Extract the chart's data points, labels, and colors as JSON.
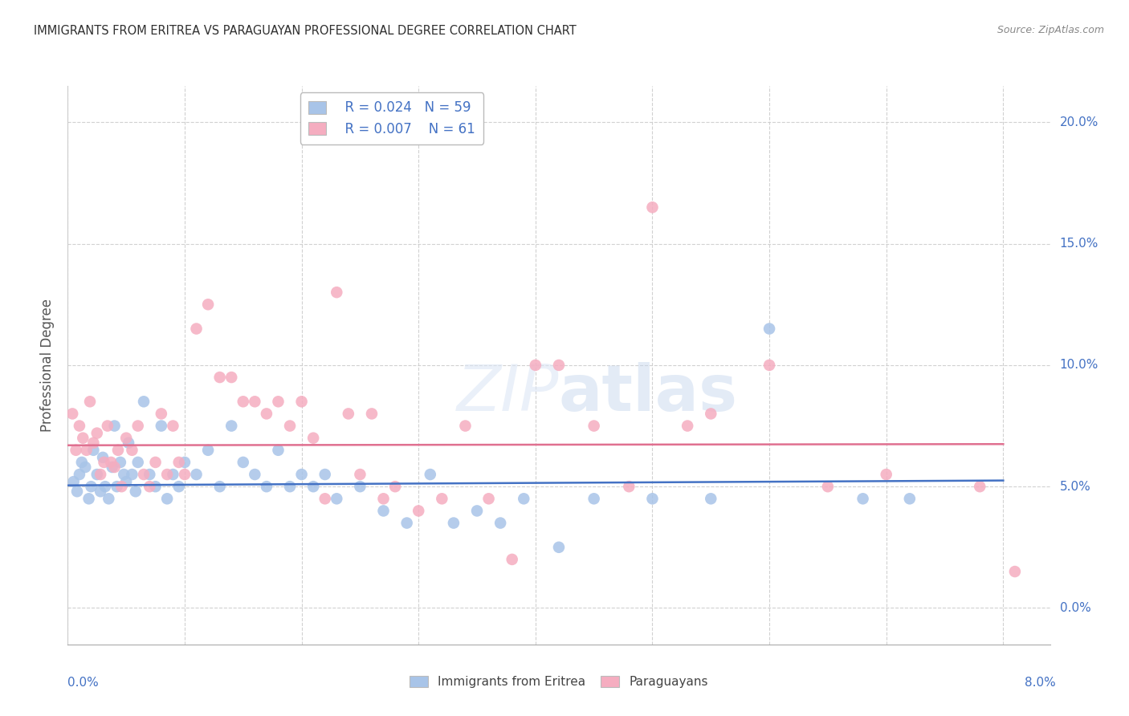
{
  "title": "IMMIGRANTS FROM ERITREA VS PARAGUAYAN PROFESSIONAL DEGREE CORRELATION CHART",
  "source": "Source: ZipAtlas.com",
  "ylabel": "Professional Degree",
  "legend_blue_r": "R = 0.024",
  "legend_blue_n": "N = 59",
  "legend_pink_r": "R = 0.007",
  "legend_pink_n": "N = 61",
  "legend_label_blue": "Immigrants from Eritrea",
  "legend_label_pink": "Paraguayans",
  "xlim": [
    0.0,
    8.4
  ],
  "ylim": [
    -1.5,
    21.5
  ],
  "yticks": [
    0.0,
    5.0,
    10.0,
    15.0,
    20.0
  ],
  "ytick_labels": [
    "0.0%",
    "5.0%",
    "10.0%",
    "15.0%",
    "20.0%"
  ],
  "blue_color": "#a8c4e8",
  "pink_color": "#f5adc0",
  "blue_line_color": "#4472c4",
  "pink_line_color": "#e07090",
  "title_color": "#404040",
  "axis_label_color": "#4472c4",
  "watermark": "ZIPatlas",
  "blue_trend_x": [
    0.0,
    8.0
  ],
  "blue_trend_y": [
    5.05,
    5.25
  ],
  "pink_trend_x": [
    0.0,
    8.0
  ],
  "pink_trend_y": [
    6.7,
    6.75
  ],
  "blue_x": [
    0.05,
    0.08,
    0.1,
    0.12,
    0.15,
    0.18,
    0.2,
    0.22,
    0.25,
    0.28,
    0.3,
    0.32,
    0.35,
    0.38,
    0.4,
    0.42,
    0.45,
    0.48,
    0.5,
    0.52,
    0.55,
    0.58,
    0.6,
    0.65,
    0.7,
    0.75,
    0.8,
    0.85,
    0.9,
    0.95,
    1.0,
    1.1,
    1.2,
    1.3,
    1.4,
    1.5,
    1.6,
    1.7,
    1.8,
    1.9,
    2.0,
    2.1,
    2.2,
    2.3,
    2.5,
    2.7,
    2.9,
    3.1,
    3.3,
    3.5,
    3.7,
    3.9,
    4.2,
    4.5,
    5.0,
    5.5,
    6.0,
    6.8,
    7.2
  ],
  "blue_y": [
    5.2,
    4.8,
    5.5,
    6.0,
    5.8,
    4.5,
    5.0,
    6.5,
    5.5,
    4.8,
    6.2,
    5.0,
    4.5,
    5.8,
    7.5,
    5.0,
    6.0,
    5.5,
    5.2,
    6.8,
    5.5,
    4.8,
    6.0,
    8.5,
    5.5,
    5.0,
    7.5,
    4.5,
    5.5,
    5.0,
    6.0,
    5.5,
    6.5,
    5.0,
    7.5,
    6.0,
    5.5,
    5.0,
    6.5,
    5.0,
    5.5,
    5.0,
    5.5,
    4.5,
    5.0,
    4.0,
    3.5,
    5.5,
    3.5,
    4.0,
    3.5,
    4.5,
    2.5,
    4.5,
    4.5,
    4.5,
    11.5,
    4.5,
    4.5
  ],
  "pink_x": [
    0.04,
    0.07,
    0.1,
    0.13,
    0.16,
    0.19,
    0.22,
    0.25,
    0.28,
    0.31,
    0.34,
    0.37,
    0.4,
    0.43,
    0.46,
    0.5,
    0.55,
    0.6,
    0.65,
    0.7,
    0.75,
    0.8,
    0.85,
    0.9,
    0.95,
    1.0,
    1.1,
    1.2,
    1.3,
    1.4,
    1.5,
    1.6,
    1.7,
    1.8,
    1.9,
    2.0,
    2.1,
    2.2,
    2.3,
    2.4,
    2.5,
    2.6,
    2.7,
    2.8,
    3.0,
    3.2,
    3.4,
    3.6,
    3.8,
    4.0,
    4.2,
    4.5,
    4.8,
    5.0,
    5.3,
    5.5,
    6.0,
    6.5,
    7.0,
    7.8,
    8.1
  ],
  "pink_y": [
    8.0,
    6.5,
    7.5,
    7.0,
    6.5,
    8.5,
    6.8,
    7.2,
    5.5,
    6.0,
    7.5,
    6.0,
    5.8,
    6.5,
    5.0,
    7.0,
    6.5,
    7.5,
    5.5,
    5.0,
    6.0,
    8.0,
    5.5,
    7.5,
    6.0,
    5.5,
    11.5,
    12.5,
    9.5,
    9.5,
    8.5,
    8.5,
    8.0,
    8.5,
    7.5,
    8.5,
    7.0,
    4.5,
    13.0,
    8.0,
    5.5,
    8.0,
    4.5,
    5.0,
    4.0,
    4.5,
    7.5,
    4.5,
    2.0,
    10.0,
    10.0,
    7.5,
    5.0,
    16.5,
    7.5,
    8.0,
    10.0,
    5.0,
    5.5,
    5.0,
    1.5
  ]
}
